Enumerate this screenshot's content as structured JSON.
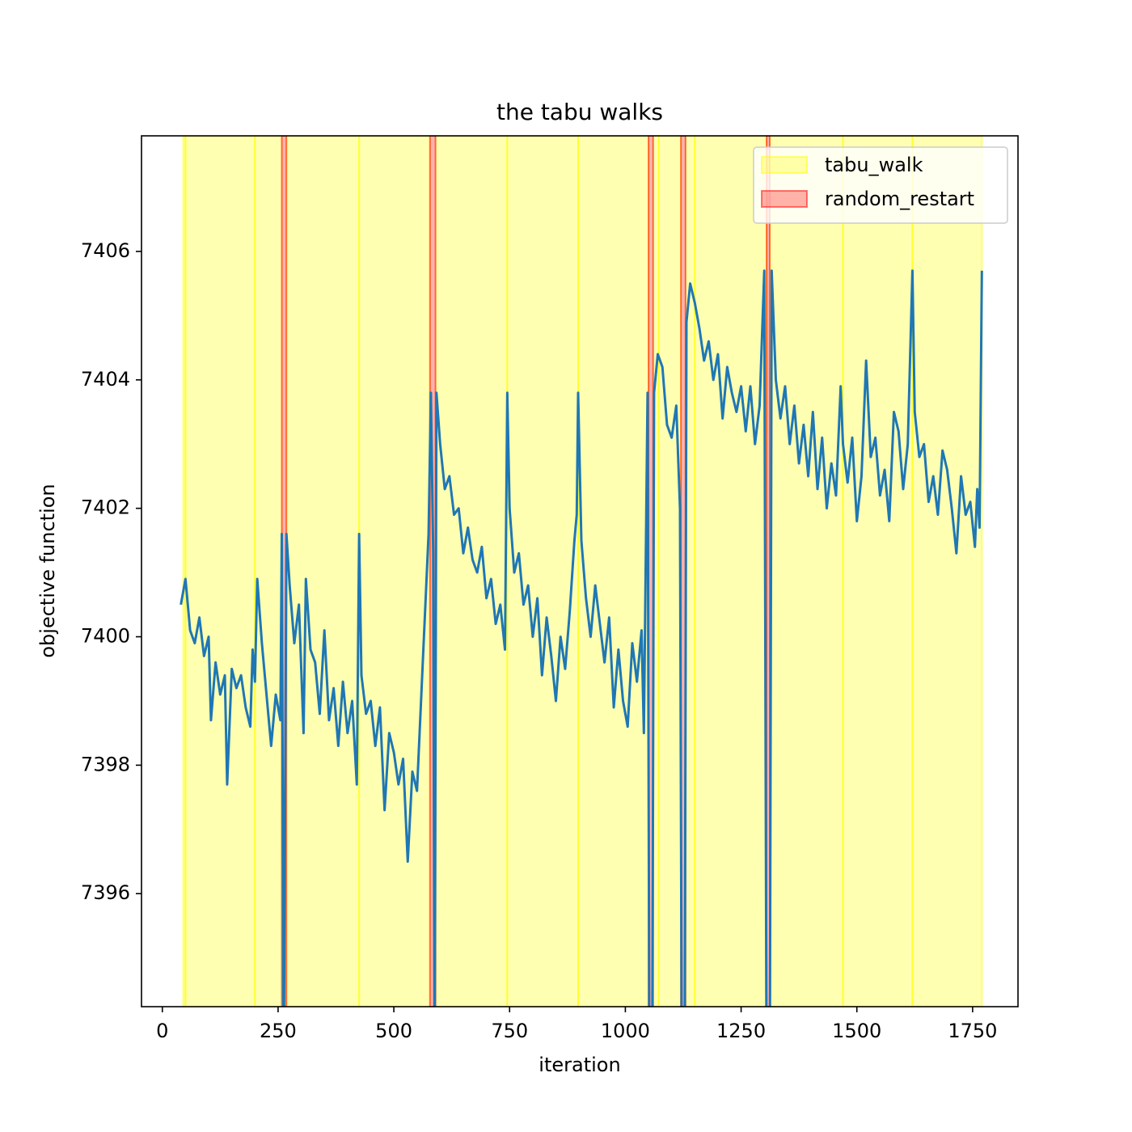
{
  "chart_data": {
    "type": "line",
    "title": "the tabu walks",
    "xlabel": "iteration",
    "ylabel": "objective function",
    "xlim": [
      -45,
      1848
    ],
    "ylim": [
      7394.24,
      7407.8
    ],
    "xticks": [
      0,
      250,
      500,
      750,
      1000,
      1250,
      1500,
      1750
    ],
    "yticks": [
      7396,
      7398,
      7400,
      7402,
      7404,
      7406
    ],
    "legend": "upper right",
    "series": [
      {
        "name": "tabu_walk",
        "type": "span",
        "color": "#ffff00",
        "spans": [
          [
            45,
            50
          ],
          [
            50,
            200
          ],
          [
            200,
            258
          ],
          [
            268,
            425
          ],
          [
            425,
            578
          ],
          [
            590,
            745
          ],
          [
            745,
            898
          ],
          [
            898,
            1050
          ],
          [
            1060,
            1072
          ],
          [
            1072,
            1120
          ],
          [
            1130,
            1150
          ],
          [
            1150,
            1305
          ],
          [
            1312,
            1470
          ],
          [
            1470,
            1620
          ],
          [
            1620,
            1770
          ]
        ]
      },
      {
        "name": "random_restart",
        "type": "span",
        "color": "#ff0000",
        "spans": [
          [
            258,
            268
          ],
          [
            578,
            590
          ],
          [
            1050,
            1060
          ],
          [
            1120,
            1130
          ],
          [
            1305,
            1312
          ]
        ]
      }
    ],
    "line": {
      "color": "#1f77b4",
      "x": [
        40,
        50,
        55,
        60,
        70,
        80,
        90,
        100,
        105,
        115,
        125,
        135,
        140,
        150,
        160,
        170,
        180,
        190,
        195,
        200,
        205,
        215,
        225,
        235,
        245,
        255,
        258,
        262,
        268,
        275,
        285,
        295,
        305,
        310,
        320,
        330,
        340,
        350,
        360,
        370,
        380,
        390,
        400,
        410,
        420,
        425,
        430,
        440,
        450,
        460,
        470,
        480,
        490,
        500,
        510,
        520,
        530,
        540,
        550,
        575,
        580,
        585,
        588,
        592,
        600,
        610,
        620,
        630,
        640,
        650,
        660,
        670,
        680,
        690,
        700,
        710,
        720,
        730,
        740,
        745,
        750,
        760,
        770,
        780,
        790,
        800,
        810,
        820,
        830,
        840,
        850,
        860,
        870,
        880,
        890,
        895,
        898,
        905,
        915,
        925,
        935,
        945,
        955,
        965,
        975,
        985,
        995,
        1005,
        1015,
        1025,
        1035,
        1040,
        1048,
        1052,
        1058,
        1062,
        1070,
        1080,
        1090,
        1100,
        1110,
        1118,
        1122,
        1128,
        1132,
        1140,
        1150,
        1160,
        1170,
        1180,
        1190,
        1200,
        1210,
        1220,
        1230,
        1240,
        1250,
        1260,
        1270,
        1280,
        1290,
        1300,
        1305,
        1312,
        1316,
        1325,
        1335,
        1345,
        1355,
        1365,
        1375,
        1385,
        1395,
        1405,
        1415,
        1425,
        1435,
        1445,
        1455,
        1465,
        1470,
        1480,
        1490,
        1500,
        1510,
        1520,
        1530,
        1540,
        1550,
        1560,
        1570,
        1580,
        1590,
        1600,
        1610,
        1620,
        1625,
        1635,
        1645,
        1655,
        1665,
        1675,
        1685,
        1695,
        1705,
        1715,
        1725,
        1735,
        1745,
        1755,
        1760,
        1765,
        1770
      ],
      "values": [
        7400.5,
        7400.9,
        7400.5,
        7400.1,
        7399.9,
        7400.3,
        7399.7,
        7400.0,
        7398.7,
        7399.6,
        7399.1,
        7399.4,
        7397.7,
        7399.5,
        7399.2,
        7399.4,
        7398.9,
        7398.6,
        7399.8,
        7399.3,
        7400.9,
        7399.9,
        7399.1,
        7398.3,
        7399.1,
        7398.7,
        7401.6,
        7393,
        7401.6,
        7400.8,
        7399.9,
        7400.5,
        7398.5,
        7400.9,
        7399.8,
        7399.6,
        7398.8,
        7400.1,
        7398.7,
        7399.2,
        7398.3,
        7399.3,
        7398.5,
        7399.0,
        7397.7,
        7401.6,
        7399.4,
        7398.8,
        7399.0,
        7398.3,
        7398.9,
        7397.3,
        7398.5,
        7398.2,
        7397.7,
        7398.1,
        7396.5,
        7397.9,
        7397.6,
        7401.6,
        7403.8,
        7401.3,
        7393,
        7403.8,
        7403.0,
        7402.3,
        7402.5,
        7401.9,
        7402.0,
        7401.3,
        7401.7,
        7401.2,
        7401.0,
        7401.4,
        7400.6,
        7400.9,
        7400.2,
        7400.5,
        7399.8,
        7403.8,
        7402.0,
        7401.0,
        7401.3,
        7400.5,
        7400.8,
        7400.0,
        7400.6,
        7399.4,
        7400.3,
        7399.7,
        7399.0,
        7400.0,
        7399.5,
        7400.4,
        7401.5,
        7401.9,
        7403.8,
        7401.5,
        7400.6,
        7400.0,
        7400.8,
        7400.2,
        7399.6,
        7400.3,
        7398.9,
        7399.8,
        7399.0,
        7398.6,
        7399.9,
        7399.3,
        7400.1,
        7398.5,
        7403.8,
        7393,
        7393,
        7403.8,
        7404.4,
        7404.2,
        7403.3,
        7403.1,
        7403.6,
        7402.0,
        7393,
        7393,
        7404.9,
        7405.5,
        7405.2,
        7404.8,
        7404.3,
        7404.6,
        7404.0,
        7404.4,
        7403.4,
        7404.2,
        7403.8,
        7403.5,
        7403.9,
        7403.2,
        7403.9,
        7403.0,
        7403.6,
        7405.7,
        7393,
        7393,
        7405.7,
        7404.0,
        7403.4,
        7403.9,
        7403.0,
        7403.6,
        7402.7,
        7403.3,
        7402.5,
        7403.5,
        7402.3,
        7403.1,
        7402.0,
        7402.7,
        7402.2,
        7403.9,
        7403.0,
        7402.4,
        7403.1,
        7401.8,
        7402.5,
        7404.3,
        7402.8,
        7403.1,
        7402.2,
        7402.6,
        7401.8,
        7403.5,
        7403.2,
        7402.3,
        7403.0,
        7405.7,
        7403.5,
        7402.8,
        7403.0,
        7402.1,
        7402.5,
        7401.9,
        7402.9,
        7402.6,
        7402.0,
        7401.3,
        7402.5,
        7401.9,
        7402.1,
        7401.4,
        7402.3,
        7401.7,
        7405.7
      ]
    }
  }
}
